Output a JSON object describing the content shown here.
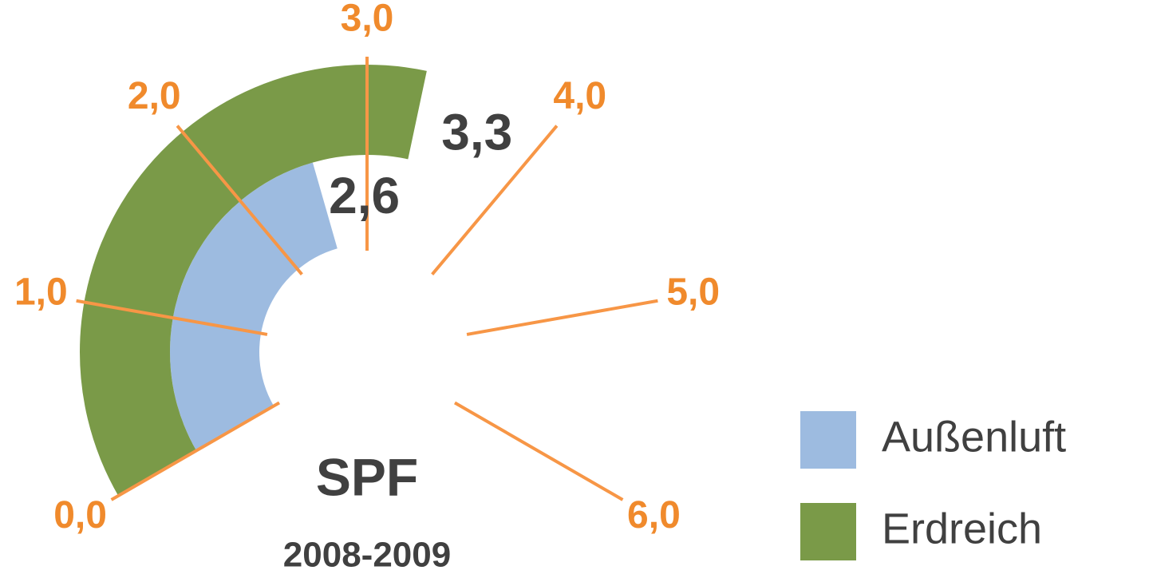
{
  "chart_data": {
    "type": "gauge",
    "title": "SPF",
    "subtitle": "2008-2009",
    "ylim": [
      0,
      6
    ],
    "yticks": [
      {
        "value": 0,
        "label": "0,0"
      },
      {
        "value": 1,
        "label": "1,0"
      },
      {
        "value": 2,
        "label": "2,0"
      },
      {
        "value": 3,
        "label": "3,0"
      },
      {
        "value": 4,
        "label": "4,0"
      },
      {
        "value": 5,
        "label": "5,0"
      },
      {
        "value": 6,
        "label": "6,0"
      }
    ],
    "series": [
      {
        "name": "Außenluft",
        "color": "#9dbbe0",
        "values": [
          2.6
        ],
        "value_labels": [
          "2,6"
        ]
      },
      {
        "name": "Erdreich",
        "color": "#7a9a48",
        "values": [
          3.3
        ],
        "value_labels": [
          "3,3"
        ]
      }
    ]
  }
}
